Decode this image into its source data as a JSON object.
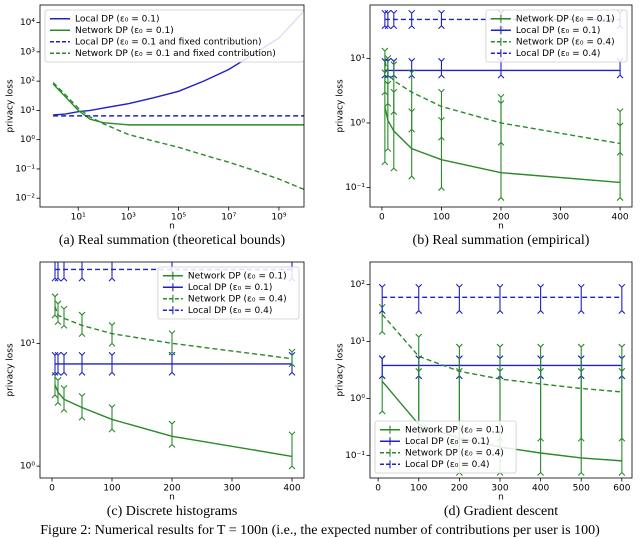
{
  "figure_caption": "Figure 2: Numerical results for T = 100n (i.e., the expected number of contributions per user is 100)",
  "chart_data": [
    {
      "type": "line",
      "caption": "(a) Real summation (theoretical bounds)",
      "xlabel": "n",
      "ylabel": "privacy loss",
      "xscale": "log",
      "yscale": "log",
      "xlim": [
        0.3,
        10000000000
      ],
      "ylim": [
        0.005,
        40000
      ],
      "legend": "upper left",
      "xticks": [
        {
          "value": 10,
          "label": "10¹"
        },
        {
          "value": 1000,
          "label": "10³"
        },
        {
          "value": 100000,
          "label": "10⁵"
        },
        {
          "value": 10000000,
          "label": "10⁷"
        },
        {
          "value": 1000000000,
          "label": "10⁹"
        }
      ],
      "yticks": [
        {
          "value": 0.01,
          "label": "10⁻²"
        },
        {
          "value": 0.1,
          "label": "10⁻¹"
        },
        {
          "value": 1,
          "label": "10⁰"
        },
        {
          "value": 10,
          "label": "10¹"
        },
        {
          "value": 100,
          "label": "10²"
        },
        {
          "value": 1000,
          "label": "10³"
        },
        {
          "value": 10000,
          "label": "10⁴"
        }
      ],
      "x": [
        1,
        3,
        10,
        30,
        100,
        1000,
        10000,
        100000,
        1000000,
        10000000,
        100000000,
        1000000000,
        10000000000
      ],
      "series": [
        {
          "name": "Local DP (ε₀ = 0.1)",
          "color": "#2020c8",
          "dash": false,
          "values": [
            7,
            7.5,
            9,
            10,
            12,
            17,
            27,
            45,
            100,
            250,
            850,
            3000,
            25000
          ]
        },
        {
          "name": "Network DP (ε₀ = 0.1)",
          "color": "#2a8a2a",
          "dash": false,
          "values": [
            80,
            30,
            10,
            5,
            3.8,
            3.2,
            3.2,
            3.2,
            3.2,
            3.2,
            3.2,
            3.2,
            3.2
          ]
        },
        {
          "name": "Local DP (ε₀ = 0.1 and fixed contribution)",
          "color": "#2020c8",
          "dash": true,
          "values": [
            6.5,
            6.5,
            6.5,
            6.5,
            6.5,
            6.5,
            6.5,
            6.5,
            6.5,
            6.5,
            6.5,
            6.5,
            6.5
          ]
        },
        {
          "name": "Network DP (ε₀ = 0.1 and fixed contribution)",
          "color": "#2a8a2a",
          "dash": true,
          "values": [
            90,
            35,
            12,
            6,
            3.5,
            1.5,
            0.9,
            0.55,
            0.3,
            0.17,
            0.09,
            0.045,
            0.02
          ]
        }
      ]
    },
    {
      "type": "line",
      "caption": "(b) Real summation (empirical)",
      "xlabel": "n",
      "ylabel": "privacy loss",
      "xscale": "linear",
      "yscale": "log",
      "xlim": [
        -20,
        420
      ],
      "ylim": [
        0.05,
        67
      ],
      "legend": "upper right",
      "xticks": [
        0,
        100,
        200,
        300,
        400
      ],
      "yticks": [
        {
          "value": 0.1,
          "label": "10⁻¹"
        },
        {
          "value": 1,
          "label": "10⁰"
        },
        {
          "value": 10,
          "label": "10¹"
        }
      ],
      "x": [
        5,
        10,
        20,
        50,
        100,
        200,
        400
      ],
      "series": [
        {
          "name": "Network DP (ε₀ = 0.1)",
          "color": "#2a8a2a",
          "dash": false,
          "values": [
            1.8,
            1.1,
            0.75,
            0.4,
            0.27,
            0.17,
            0.12
          ],
          "low": [
            0.25,
            0.4,
            0.2,
            0.15,
            0.1,
            0.07,
            0.07
          ],
          "high": [
            6,
            4,
            3,
            1.5,
            1.1,
            2.5,
            1.5
          ]
        },
        {
          "name": "Local DP (ε₀ = 0.1)",
          "color": "#2020c8",
          "dash": false,
          "values": [
            6.5,
            6.5,
            6.5,
            6.5,
            6.5,
            6.5,
            6.5
          ],
          "low": [
            5.5,
            5.5,
            5.5,
            5.5,
            5.5,
            5.5,
            5.5
          ],
          "high": [
            9,
            9,
            9,
            9,
            9,
            9,
            9
          ]
        },
        {
          "name": "Network DP (ε₀ = 0.4)",
          "color": "#2a8a2a",
          "dash": true,
          "values": [
            9,
            6,
            4.5,
            3,
            1.8,
            1,
            0.48
          ],
          "low": [
            3,
            2,
            1.5,
            0.8,
            0.6,
            0.5,
            0.35
          ],
          "high": [
            13,
            10,
            8,
            6,
            3,
            2,
            0.9
          ]
        },
        {
          "name": "Local DP (ε₀ = 0.4)",
          "color": "#2020c8",
          "dash": true,
          "values": [
            40,
            40,
            40,
            40,
            40,
            40,
            40
          ],
          "low": [
            32,
            32,
            32,
            32,
            32,
            32,
            32
          ],
          "high": [
            50,
            50,
            50,
            50,
            50,
            50,
            50
          ]
        }
      ]
    },
    {
      "type": "line",
      "caption": "(c) Discrete histograms",
      "xlabel": "n",
      "ylabel": "privacy loss",
      "xscale": "linear",
      "yscale": "log",
      "xlim": [
        -20,
        420
      ],
      "ylim": [
        0.8,
        46
      ],
      "legend": "upper right",
      "xticks": [
        0,
        100,
        200,
        300,
        400
      ],
      "yticks": [
        {
          "value": 1,
          "label": "10⁰"
        },
        {
          "value": 10,
          "label": "10¹"
        }
      ],
      "x": [
        5,
        10,
        20,
        50,
        100,
        200,
        400
      ],
      "series": [
        {
          "name": "Network DP (ε₀ = 0.1)",
          "color": "#2a8a2a",
          "dash": false,
          "values": [
            4.6,
            4,
            3.5,
            3,
            2.4,
            1.75,
            1.2
          ],
          "low": [
            3.8,
            3.3,
            2.9,
            2.5,
            2,
            1.5,
            1
          ],
          "high": [
            5.5,
            5,
            4.3,
            3.7,
            3,
            2.2,
            1.8
          ]
        },
        {
          "name": "Local DP (ε₀ = 0.1)",
          "color": "#2020c8",
          "dash": false,
          "values": [
            6.8,
            6.8,
            6.8,
            6.8,
            6.8,
            6.8,
            6.8
          ],
          "low": [
            5.8,
            5.8,
            5.8,
            5.8,
            5.8,
            5.8,
            5.8
          ],
          "high": [
            8,
            8,
            8,
            8,
            8,
            8,
            8
          ]
        },
        {
          "name": "Network DP (ε₀ = 0.4)",
          "color": "#2a8a2a",
          "dash": true,
          "values": [
            20,
            17,
            16,
            14,
            12,
            10,
            7.5
          ],
          "low": [
            17,
            15,
            14,
            12,
            10,
            8.5,
            6.8
          ],
          "high": [
            24,
            21,
            19,
            17,
            14,
            12,
            8.5
          ]
        },
        {
          "name": "Local DP (ε₀ = 0.4)",
          "color": "#2020c8",
          "dash": true,
          "values": [
            40,
            40,
            40,
            40,
            40,
            40,
            40
          ],
          "low": [
            34,
            34,
            34,
            34,
            34,
            34,
            34
          ],
          "high": [
            47,
            47,
            47,
            47,
            47,
            47,
            47
          ]
        }
      ]
    },
    {
      "type": "line",
      "caption": "(d) Gradient descent",
      "xlabel": "n",
      "ylabel": "privacy loss",
      "xscale": "linear",
      "yscale": "log",
      "xlim": [
        -20,
        625
      ],
      "ylim": [
        0.04,
        250
      ],
      "legend": "lower left",
      "xticks": [
        0,
        100,
        200,
        300,
        400,
        500,
        600
      ],
      "yticks": [
        {
          "value": 0.1,
          "label": "10⁻¹"
        },
        {
          "value": 1,
          "label": "10⁰"
        },
        {
          "value": 10,
          "label": "10¹"
        },
        {
          "value": 100,
          "label": "10²"
        }
      ],
      "x": [
        10,
        100,
        200,
        300,
        400,
        500,
        600
      ],
      "series": [
        {
          "name": "Network DP (ε₀ = 0.1)",
          "color": "#2a8a2a",
          "dash": false,
          "values": [
            2,
            0.35,
            0.2,
            0.14,
            0.11,
            0.09,
            0.08
          ],
          "low": [
            0.6,
            0.07,
            0.05,
            0.05,
            0.05,
            0.05,
            0.05
          ],
          "high": [
            5,
            3,
            3,
            3,
            3,
            3,
            3
          ]
        },
        {
          "name": "Local DP (ε₀ = 0.1)",
          "color": "#2020c8",
          "dash": false,
          "values": [
            3.8,
            3.8,
            3.8,
            3.8,
            3.8,
            3.8,
            3.8
          ],
          "low": [
            2.5,
            2.5,
            2.5,
            2.5,
            2.5,
            2.5,
            2.5
          ],
          "high": [
            5,
            5,
            5,
            5,
            5,
            5,
            5
          ]
        },
        {
          "name": "Network DP (ε₀ = 0.4)",
          "color": "#2a8a2a",
          "dash": true,
          "values": [
            30,
            5.5,
            3,
            2.2,
            1.8,
            1.5,
            1.3
          ],
          "low": [
            15,
            0.3,
            0.2,
            0.2,
            0.2,
            0.2,
            0.2
          ],
          "high": [
            40,
            12,
            8,
            8,
            8,
            8,
            8
          ]
        },
        {
          "name": "Local DP (ε₀ = 0.4)",
          "color": "#2020c8",
          "dash": true,
          "values": [
            60,
            60,
            60,
            60,
            60,
            60,
            60
          ],
          "low": [
            35,
            35,
            35,
            35,
            35,
            35,
            35
          ],
          "high": [
            90,
            90,
            90,
            90,
            90,
            90,
            90
          ]
        }
      ]
    }
  ]
}
